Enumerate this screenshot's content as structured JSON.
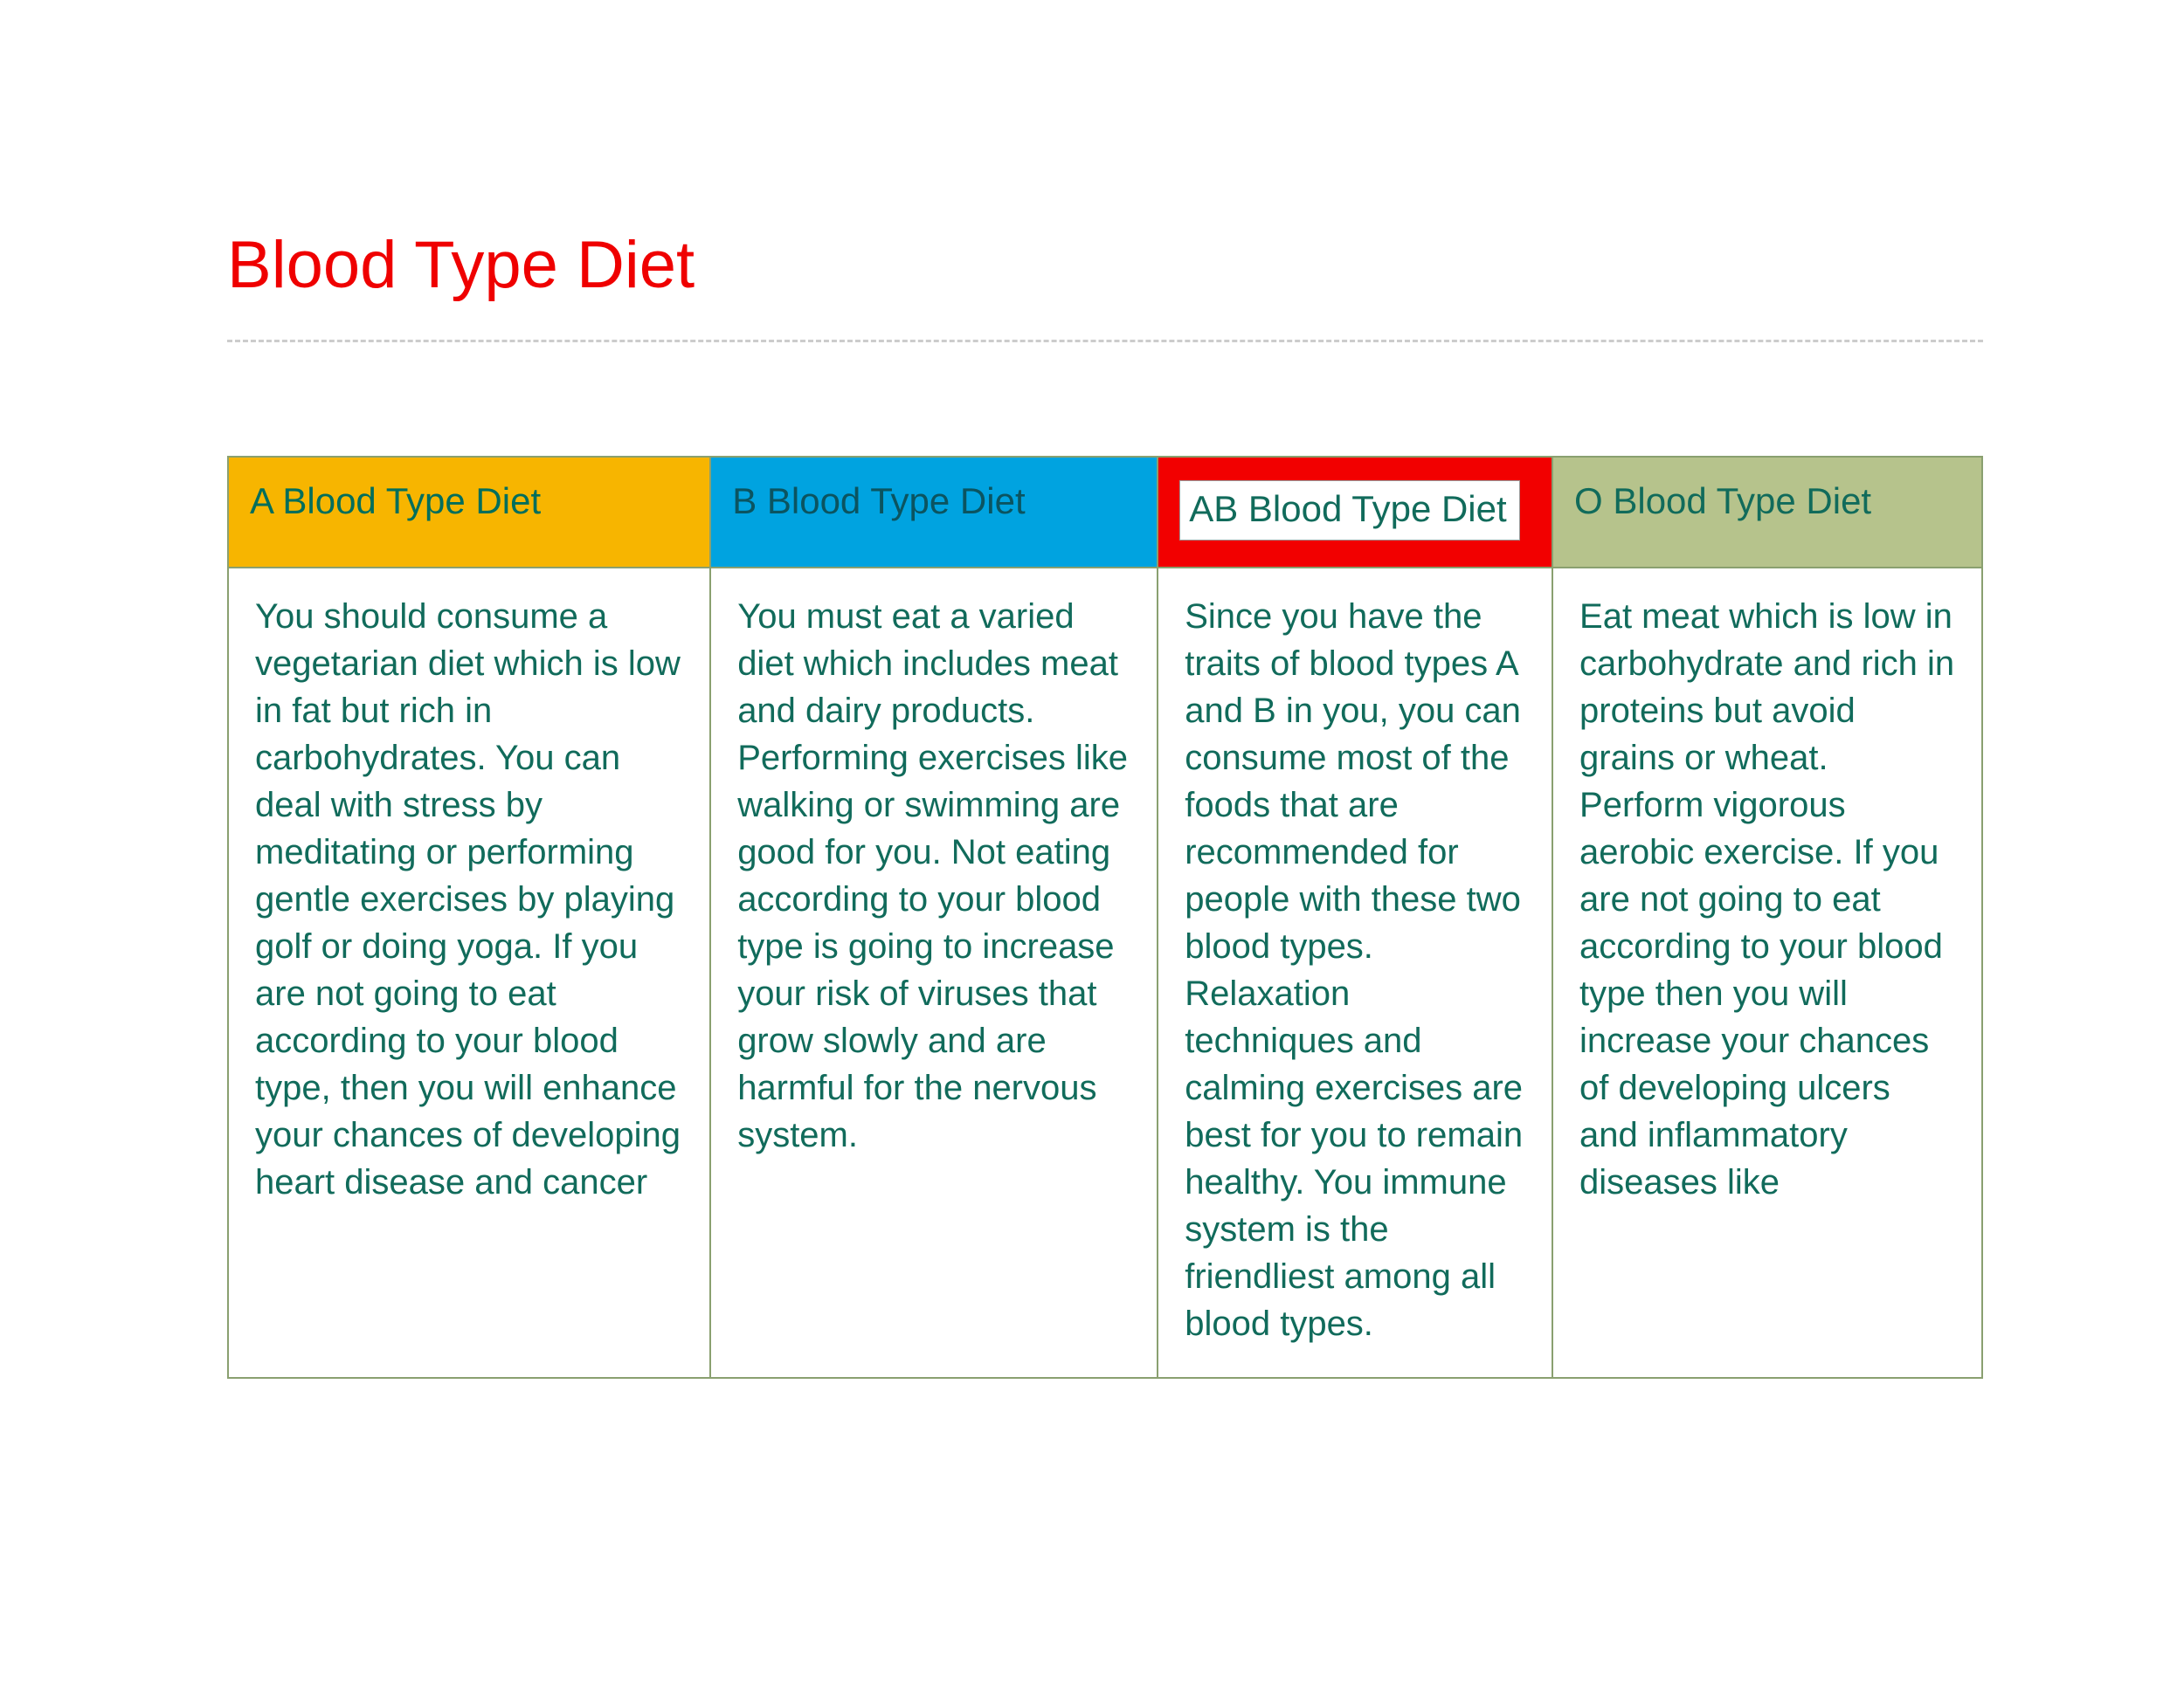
{
  "title": {
    "text": "Blood Type Diet",
    "color": "#ef0000"
  },
  "divider_color": "#cccccc",
  "table": {
    "border_color": "#8aa070",
    "text_color": "#116b5b",
    "header_fontsize": 42,
    "body_fontsize": 40,
    "columns": [
      {
        "key": "a",
        "header": "A Blood Type Diet",
        "header_bg": "#f7b500",
        "header_text_color": "#006e5c",
        "body": "You should consume a vegetarian diet which is low in fat but rich in carbohydrates. You can deal with stress by meditating or performing gentle exercises by playing golf or doing yoga. If you are not going to eat according to your blood type, then you will enhance your chances of developing heart disease and cancer"
      },
      {
        "key": "b",
        "header": "B Blood Type Diet",
        "header_bg": "#00a3e0",
        "header_text_color": "#0b5460",
        "body": "You must eat a varied diet which includes meat and dairy products. Performing exercises like walking or swimming are good for you. Not eating according to your blood type is going to increase your risk of viruses that grow slowly and are harmful for the nervous system."
      },
      {
        "key": "ab",
        "header": "AB Blood Type Diet",
        "header_bg": "#f20000",
        "header_text_color": "#116b5b",
        "body": "Since you have the traits of blood types A and B in you, you can consume most of the foods that are recommended for people with these two blood types. Relaxation techniques and calming exercises are best for you to remain healthy. You immune system is the friendliest among all blood types."
      },
      {
        "key": "o",
        "header": "O Blood Type Diet",
        "header_bg": "#b6c38c",
        "header_text_color": "#116b5b",
        "body": "Eat meat which is low in carbohydrate and rich in proteins but avoid grains or wheat. Perform vigorous aerobic exercise. If you are not going to eat according to your blood type then you will increase your chances of developing ulcers and inflammatory diseases like"
      }
    ]
  }
}
